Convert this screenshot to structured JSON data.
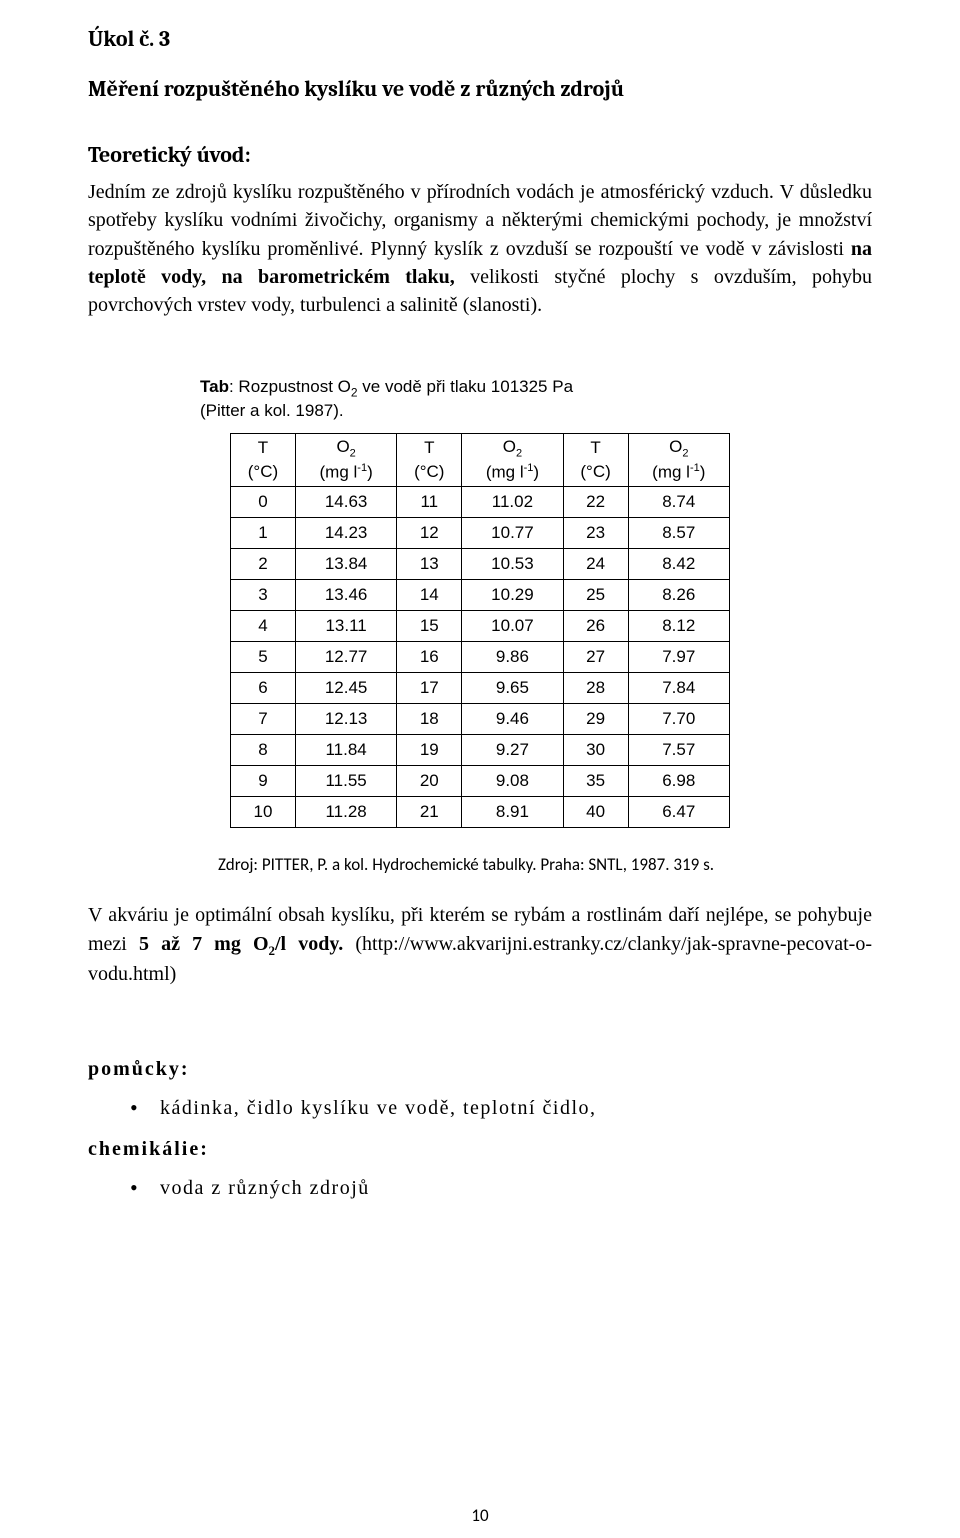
{
  "heading": {
    "line1": "Úkol č. 3",
    "line2": "Měření rozpuštěného kyslíku ve vodě z různých zdrojů"
  },
  "intro": {
    "subheading": "Teoretický úvod:",
    "text_before": "Jedním ze zdrojů kyslíku rozpuštěného v přírodních vodách je atmosférický vzduch. V důsledku spotřeby kyslíku vodními živočichy, organismy a některými chemickými pochody, je množství rozpuštěného kyslíku proměnlivé. Plynný kyslík z ovzduší se rozpouští ve vodě v závislosti ",
    "bold1": "na teplotě vody, na barometrickém tlaku,",
    "text_after": "  velikosti styčné plochy s ovzduším, pohybu povrchových vrstev vody, turbulenci a salinitě (slanosti)."
  },
  "table": {
    "caption_label": "Tab",
    "caption_rest_line1": ": Rozpustnost O",
    "caption_sub": "2",
    "caption_rest_line1b": " ve vodě při tlaku 101325 Pa",
    "caption_line2": "(Pitter a kol. 1987).",
    "header_t_top": "T",
    "header_t_bot": "(°C)",
    "header_o2_top": "O",
    "header_o2_sub": "2",
    "header_o2_bot_pre": "(mg l",
    "header_o2_bot_sup": "-1",
    "header_o2_bot_post": ")",
    "rows": [
      [
        "0",
        "14.63",
        "11",
        "11.02",
        "22",
        "8.74"
      ],
      [
        "1",
        "14.23",
        "12",
        "10.77",
        "23",
        "8.57"
      ],
      [
        "2",
        "13.84",
        "13",
        "10.53",
        "24",
        "8.42"
      ],
      [
        "3",
        "13.46",
        "14",
        "10.29",
        "25",
        "8.26"
      ],
      [
        "4",
        "13.11",
        "15",
        "10.07",
        "26",
        "8.12"
      ],
      [
        "5",
        "12.77",
        "16",
        "9.86",
        "27",
        "7.97"
      ],
      [
        "6",
        "12.45",
        "17",
        "9.65",
        "28",
        "7.84"
      ],
      [
        "7",
        "12.13",
        "18",
        "9.46",
        "29",
        "7.70"
      ],
      [
        "8",
        "11.84",
        "19",
        "9.27",
        "30",
        "7.57"
      ],
      [
        "9",
        "11.55",
        "20",
        "9.08",
        "35",
        "6.98"
      ],
      [
        "10",
        "11.28",
        "21",
        "8.91",
        "40",
        "6.47"
      ]
    ]
  },
  "source": "Zdroj: PITTER, P. a kol. Hydrochemické tabulky. Praha: SNTL, 1987. 319 s.",
  "para2": {
    "pre": "V akváriu je optimální obsah kyslíku, při kterém se rybám a rostlinám daří nejlépe, se pohybuje mezi ",
    "bold": "5 až 7 mg O",
    "bold_sub": "2",
    "bold_post": "/l vody.",
    "post": " (http://www.akvarijni.estranky.cz/clanky/jak-spravne-pecovat-o-vodu.html)"
  },
  "tools": {
    "heading": "pomůcky:",
    "item": "kádinka, čidlo kyslíku ve vodě, teplotní čidlo,"
  },
  "chems": {
    "heading": "chemikálie:",
    "item": "voda z různých zdrojů"
  },
  "page_number": "10"
}
